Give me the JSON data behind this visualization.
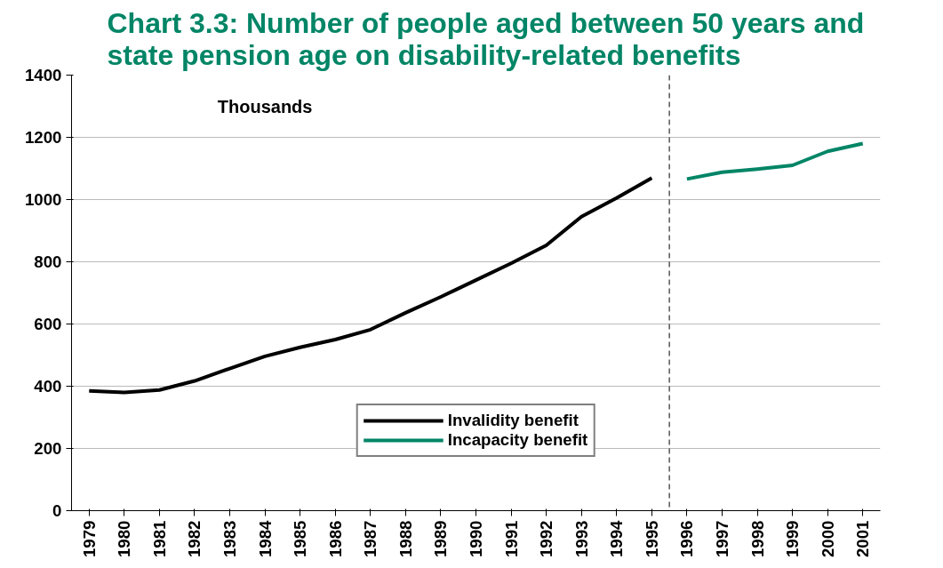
{
  "chart_data": {
    "type": "line",
    "title": "Chart 3.3: Number of people aged between 50 years and state pension age on disability-related benefits",
    "annotations": [
      "Thousands"
    ],
    "series": [
      {
        "name": "Invalidity benefit",
        "color": "#000000",
        "x": [
          1979,
          1980,
          1981,
          1982,
          1983,
          1984,
          1985,
          1986,
          1987,
          1988,
          1989,
          1990,
          1991,
          1992,
          1993,
          1994,
          1995
        ],
        "values": [
          385,
          380,
          388,
          417,
          457,
          496,
          525,
          550,
          582,
          636,
          687,
          741,
          795,
          853,
          945,
          1005,
          1069
        ]
      },
      {
        "name": "Incapacity benefit",
        "color": "#008566",
        "x": [
          1996,
          1997,
          1998,
          1999,
          2000,
          2001
        ],
        "values": [
          1066,
          1088,
          1098,
          1110,
          1155,
          1180
        ]
      }
    ],
    "xlim": [
      1978.5,
      2001.5
    ],
    "xticks": [
      1979,
      1980,
      1981,
      1982,
      1983,
      1984,
      1985,
      1986,
      1987,
      1988,
      1989,
      1990,
      1991,
      1992,
      1993,
      1994,
      1995,
      1996,
      1997,
      1998,
      1999,
      2000,
      2001
    ],
    "ylim": [
      0,
      1400
    ],
    "yticks": [
      0,
      200,
      400,
      600,
      800,
      1000,
      1200,
      1400
    ],
    "ref_lines": [
      {
        "axis": "x",
        "value": 1995.5,
        "color": "#000000",
        "line_style": "dashed"
      }
    ],
    "grid": "y",
    "legend": "bottom",
    "marker": "none",
    "line_style": "solid"
  }
}
